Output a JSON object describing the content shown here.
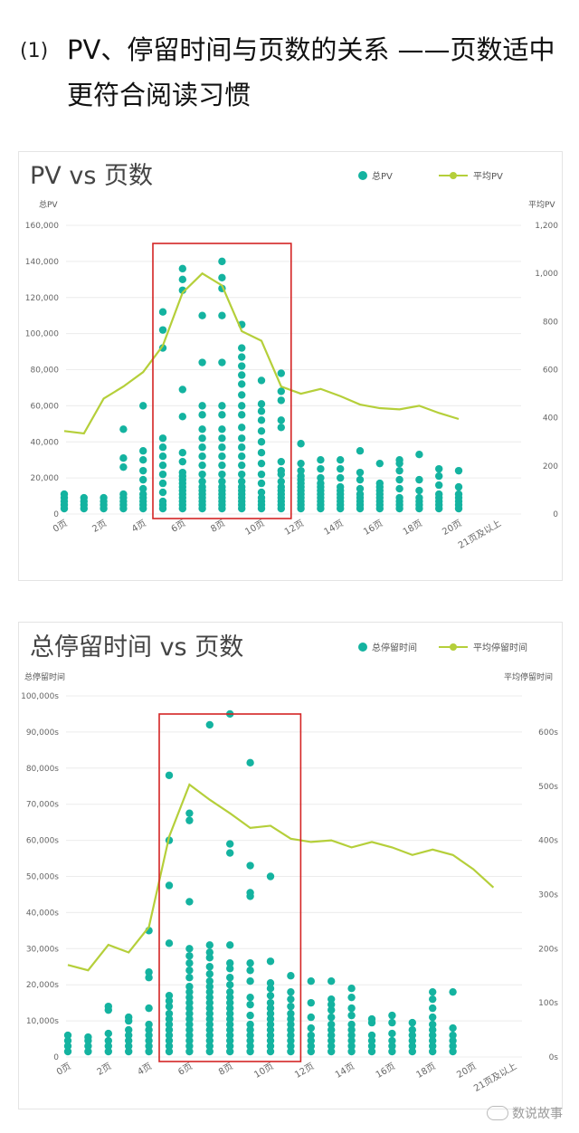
{
  "heading": {
    "number": "(1)",
    "text": "PV、停留时间与页数的关系 ——页数适中更符合阅读习惯"
  },
  "colors": {
    "dots": "#14b3a0",
    "line": "#b5cf3a",
    "box": "#d42424",
    "grid": "#ececec",
    "axis_text": "#666666"
  },
  "watermark": "数说故事",
  "chart_data": [
    {
      "type": "scatter",
      "title": "PV vs 页数",
      "legend": {
        "placement": "top-right",
        "dots_label": "总PV",
        "line_label": "平均PV"
      },
      "left_axis_label": "总PV",
      "right_axis_label": "平均PV",
      "left_ticks": [
        "0",
        "20,000",
        "40,000",
        "60,000",
        "80,000",
        "100,000",
        "120,000",
        "140,000",
        "160,000"
      ],
      "right_ticks": [
        "0",
        "200",
        "400",
        "600",
        "800",
        "1,000",
        "1,200"
      ],
      "ylim": [
        0,
        160000
      ],
      "y2lim": [
        0,
        1200
      ],
      "x_ticks": [
        "0页",
        "2页",
        "4页",
        "6页",
        "8页",
        "10页",
        "12页",
        "14页",
        "16页",
        "18页",
        "20页",
        "21页及以上"
      ],
      "grid": true,
      "highlight_box_pages": [
        5,
        11
      ],
      "scatter": [
        {
          "page": 0,
          "y": [
            3000,
            5000,
            7000,
            9000,
            11000
          ]
        },
        {
          "page": 1,
          "y": [
            3000,
            5000,
            7000,
            9000
          ]
        },
        {
          "page": 2,
          "y": [
            3000,
            5000,
            7000,
            9000
          ]
        },
        {
          "page": 3,
          "y": [
            3000,
            5000,
            7000,
            9000,
            11000,
            26000,
            31000,
            47000
          ]
        },
        {
          "page": 4,
          "y": [
            3000,
            5000,
            7000,
            9000,
            11000,
            14000,
            19000,
            24000,
            30000,
            35000,
            60000
          ]
        },
        {
          "page": 5,
          "y": [
            3000,
            5000,
            7000,
            12000,
            17000,
            22000,
            27000,
            32000,
            37000,
            42000,
            92000,
            102000,
            112000
          ]
        },
        {
          "page": 6,
          "y": [
            3000,
            5000,
            7000,
            9000,
            11000,
            13000,
            15000,
            17000,
            19000,
            21000,
            23000,
            29000,
            34000,
            54000,
            69000,
            124000,
            130000,
            136000
          ]
        },
        {
          "page": 7,
          "y": [
            3000,
            5000,
            7000,
            9000,
            11000,
            13000,
            15000,
            18000,
            22000,
            27000,
            32000,
            37000,
            42000,
            47000,
            55000,
            60000,
            84000,
            110000
          ]
        },
        {
          "page": 8,
          "y": [
            3000,
            5000,
            7000,
            9000,
            11000,
            13000,
            15000,
            18000,
            22000,
            27000,
            32000,
            37000,
            42000,
            47000,
            55000,
            60000,
            84000,
            110000,
            125000,
            131000,
            140000
          ]
        },
        {
          "page": 9,
          "y": [
            3000,
            5000,
            7000,
            9000,
            11000,
            13000,
            15000,
            18000,
            22000,
            27000,
            32000,
            37000,
            42000,
            48000,
            55000,
            60000,
            66000,
            72000,
            77000,
            82000,
            87000,
            92000,
            105000
          ]
        },
        {
          "page": 10,
          "y": [
            3000,
            5000,
            7000,
            9000,
            12000,
            17000,
            22000,
            28000,
            34000,
            40000,
            46000,
            52000,
            57000,
            61000,
            74000
          ]
        },
        {
          "page": 11,
          "y": [
            3000,
            5000,
            7000,
            9000,
            11000,
            13000,
            15000,
            18000,
            22000,
            24000,
            29000,
            48000,
            52000,
            63000,
            68000,
            78000
          ]
        },
        {
          "page": 12,
          "y": [
            3000,
            5000,
            7000,
            9000,
            11000,
            13000,
            15000,
            17000,
            19000,
            21000,
            24000,
            28000,
            39000
          ]
        },
        {
          "page": 13,
          "y": [
            3000,
            5000,
            7000,
            9000,
            11000,
            13000,
            15000,
            17000,
            20000,
            25000,
            30000
          ]
        },
        {
          "page": 14,
          "y": [
            3000,
            5000,
            7000,
            9000,
            11000,
            13000,
            15000,
            20000,
            25000,
            30000
          ]
        },
        {
          "page": 15,
          "y": [
            3000,
            5000,
            7000,
            9000,
            11000,
            14000,
            19000,
            23000,
            35000
          ]
        },
        {
          "page": 16,
          "y": [
            3000,
            5000,
            7000,
            9000,
            11000,
            13000,
            15000,
            17000,
            28000
          ]
        },
        {
          "page": 17,
          "y": [
            3000,
            5000,
            7000,
            9000,
            14000,
            19000,
            24000,
            28000,
            30000
          ]
        },
        {
          "page": 18,
          "y": [
            3000,
            5000,
            7000,
            9000,
            13000,
            19000,
            33000
          ]
        },
        {
          "page": 19,
          "y": [
            3000,
            5000,
            7000,
            9000,
            11000,
            16000,
            21000,
            25000
          ]
        },
        {
          "page": 20,
          "y": [
            3000,
            5000,
            7000,
            9000,
            11000,
            15000,
            24000
          ]
        }
      ],
      "line": [
        {
          "page": 0,
          "y": 345
        },
        {
          "page": 1,
          "y": 335
        },
        {
          "page": 2,
          "y": 480
        },
        {
          "page": 3,
          "y": 530
        },
        {
          "page": 4,
          "y": 590
        },
        {
          "page": 5,
          "y": 700
        },
        {
          "page": 6,
          "y": 920
        },
        {
          "page": 7,
          "y": 1000
        },
        {
          "page": 8,
          "y": 950
        },
        {
          "page": 9,
          "y": 760
        },
        {
          "page": 10,
          "y": 720
        },
        {
          "page": 11,
          "y": 530
        },
        {
          "page": 12,
          "y": 500
        },
        {
          "page": 13,
          "y": 520
        },
        {
          "page": 14,
          "y": 490
        },
        {
          "page": 15,
          "y": 455
        },
        {
          "page": 16,
          "y": 440
        },
        {
          "page": 17,
          "y": 435
        },
        {
          "page": 18,
          "y": 450
        },
        {
          "page": 19,
          "y": 420
        },
        {
          "page": 20,
          "y": 395
        }
      ]
    },
    {
      "type": "scatter",
      "title": "总停留时间 vs 页数",
      "legend": {
        "placement": "top-right",
        "dots_label": "总停留时间",
        "line_label": "平均停留时间"
      },
      "left_axis_label": "总停留时间",
      "right_axis_label": "平均停留时间",
      "left_ticks": [
        "0",
        "10,000s",
        "20,000s",
        "30,000s",
        "40,000s",
        "50,000s",
        "60,000s",
        "70,000s",
        "80,000s",
        "90,000s",
        "100,000s"
      ],
      "right_ticks": [
        "0s",
        "100s",
        "200s",
        "300s",
        "400s",
        "500s",
        "600s"
      ],
      "ylim": [
        0,
        100000
      ],
      "y2lim": [
        0,
        666.7
      ],
      "x_ticks": [
        "0页",
        "2页",
        "4页",
        "6页",
        "8页",
        "10页",
        "12页",
        "14页",
        "16页",
        "18页",
        "20页",
        "21页及以上"
      ],
      "grid": true,
      "highlight_box_pages": [
        5,
        11
      ],
      "scatter": [
        {
          "page": 0,
          "y": [
            1500,
            3000,
            4500,
            6000
          ]
        },
        {
          "page": 1,
          "y": [
            1500,
            3000,
            4500,
            5500
          ]
        },
        {
          "page": 2,
          "y": [
            1500,
            3000,
            4500,
            6500,
            13000,
            14000
          ]
        },
        {
          "page": 3,
          "y": [
            1500,
            3000,
            4500,
            6000,
            7500,
            10000,
            11000
          ]
        },
        {
          "page": 4,
          "y": [
            1500,
            3000,
            4500,
            6000,
            7500,
            9000,
            13500,
            22000,
            23500,
            35000
          ]
        },
        {
          "page": 5,
          "y": [
            1500,
            3000,
            4500,
            6000,
            7500,
            9000,
            10500,
            12000,
            14000,
            15500,
            17000,
            31500,
            47500,
            60000,
            78000
          ]
        },
        {
          "page": 6,
          "y": [
            1500,
            3000,
            4500,
            6000,
            7500,
            9000,
            10500,
            12000,
            13500,
            15000,
            16500,
            18000,
            19500,
            22000,
            24000,
            26000,
            28000,
            30000,
            43000,
            65500,
            67500
          ]
        },
        {
          "page": 7,
          "y": [
            1500,
            3000,
            4500,
            6000,
            7500,
            9000,
            10500,
            12000,
            13500,
            15000,
            16500,
            18000,
            19500,
            21000,
            23000,
            25000,
            27500,
            29000,
            31000,
            92000
          ]
        },
        {
          "page": 8,
          "y": [
            1500,
            3000,
            4500,
            6000,
            7500,
            9000,
            10500,
            12000,
            13500,
            15000,
            16500,
            18000,
            20000,
            22000,
            24500,
            26000,
            31000,
            56500,
            59000,
            95000
          ]
        },
        {
          "page": 9,
          "y": [
            1500,
            3000,
            4500,
            6000,
            7500,
            9000,
            11500,
            14500,
            16500,
            21000,
            24000,
            26000,
            44500,
            45500,
            53000,
            81500
          ]
        },
        {
          "page": 10,
          "y": [
            1500,
            3000,
            4500,
            6000,
            7500,
            9000,
            10500,
            12000,
            13500,
            15000,
            17000,
            19000,
            20500,
            26500,
            50000
          ]
        },
        {
          "page": 11,
          "y": [
            1500,
            3000,
            4500,
            6000,
            7500,
            9000,
            10500,
            12000,
            14000,
            16000,
            18000,
            22500
          ]
        },
        {
          "page": 12,
          "y": [
            1500,
            3000,
            4500,
            6000,
            8000,
            11000,
            15000,
            21000
          ]
        },
        {
          "page": 13,
          "y": [
            1500,
            3000,
            4500,
            6000,
            7500,
            9000,
            11000,
            13000,
            14500,
            16000,
            21000
          ]
        },
        {
          "page": 14,
          "y": [
            1500,
            3000,
            4500,
            6000,
            7500,
            9000,
            11500,
            13500,
            16500,
            19000
          ]
        },
        {
          "page": 15,
          "y": [
            1500,
            3000,
            4500,
            6000,
            9500,
            10500
          ]
        },
        {
          "page": 16,
          "y": [
            1500,
            3000,
            4500,
            6500,
            9500,
            11500
          ]
        },
        {
          "page": 17,
          "y": [
            1500,
            3000,
            4500,
            6000,
            7500,
            9500
          ]
        },
        {
          "page": 18,
          "y": [
            1500,
            3000,
            4500,
            6000,
            7500,
            9000,
            11000,
            13500,
            16000,
            18000
          ]
        },
        {
          "page": 19,
          "y": [
            1500,
            3000,
            4500,
            6000,
            8000,
            18000
          ]
        },
        {
          "page": 20,
          "y": []
        }
      ],
      "line": [
        {
          "page": 0,
          "y": 170
        },
        {
          "page": 1,
          "y": 160
        },
        {
          "page": 2,
          "y": 207
        },
        {
          "page": 3,
          "y": 193
        },
        {
          "page": 4,
          "y": 240
        },
        {
          "page": 5,
          "y": 407
        },
        {
          "page": 6,
          "y": 503
        },
        {
          "page": 7,
          "y": 475
        },
        {
          "page": 8,
          "y": 450
        },
        {
          "page": 9,
          "y": 423
        },
        {
          "page": 10,
          "y": 427
        },
        {
          "page": 11,
          "y": 403
        },
        {
          "page": 12,
          "y": 397
        },
        {
          "page": 13,
          "y": 400
        },
        {
          "page": 14,
          "y": 387
        },
        {
          "page": 15,
          "y": 397
        },
        {
          "page": 16,
          "y": 387
        },
        {
          "page": 17,
          "y": 373
        },
        {
          "page": 18,
          "y": 383
        },
        {
          "page": 19,
          "y": 373
        },
        {
          "page": 20,
          "y": 347
        },
        {
          "page": 21,
          "y": 313
        }
      ]
    }
  ]
}
